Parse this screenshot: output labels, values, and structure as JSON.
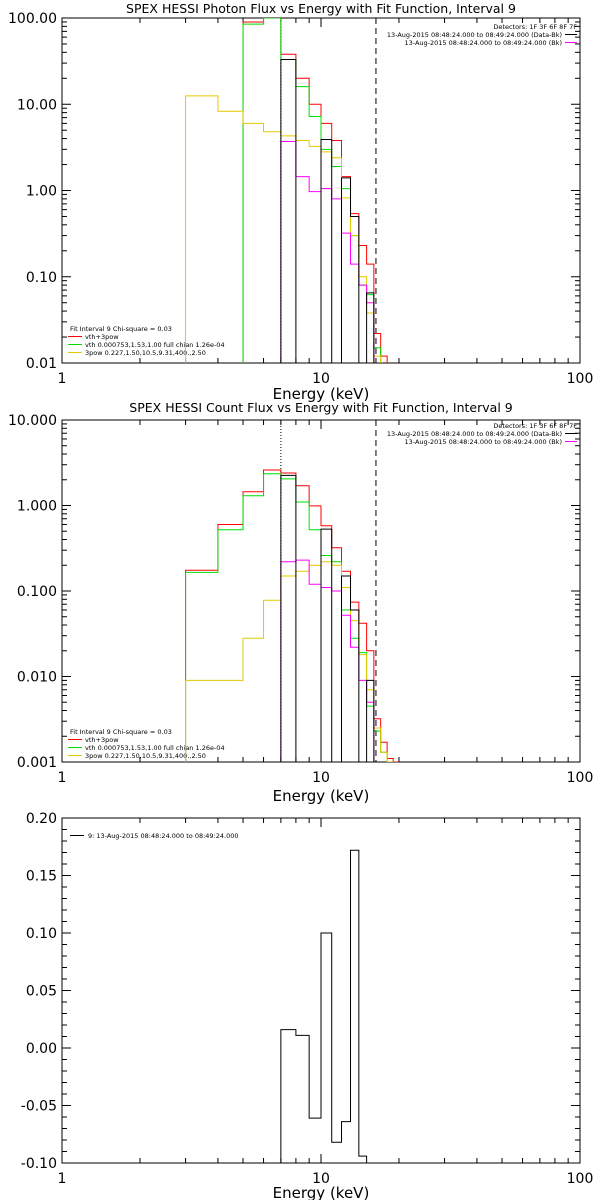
{
  "colors": {
    "total": "#000000",
    "model": "#ff0000",
    "vth": "#00dd00",
    "3pow": "#e6c800",
    "background": "#ff00ff",
    "marker": "#0000ff"
  },
  "chart_data": [
    {
      "type": "line",
      "id": "photon",
      "title": "SPEX HESSI Photon Flux vs Energy with Fit Function, Interval 9",
      "xlabel": "Energy (keV)",
      "ylabel": "",
      "xscale": "log",
      "yscale": "log",
      "xlim": [
        1,
        100
      ],
      "ylim": [
        0.01,
        100
      ],
      "x_tick_labels": [
        "1",
        "10",
        "100"
      ],
      "y_tick_labels": [
        "0.01",
        "0.10",
        "1.00",
        "10.00",
        "100.00"
      ],
      "header_lines": [
        "Detectors: 1F 3F 6F 8F 7F",
        "13-Aug-2015 08:48:24.000 to 08:49:24.000 (Data-Bk)",
        "13-Aug-2015 08:48:24.000 to 08:49:24.000 (Bk)"
      ],
      "legend_lines": [
        "Fit Interval 9   Chi-square = 0.03",
        "vth+3pow",
        "vth 0.000753,1.53,1.00  full chian 1.26e-04",
        "3pow 0.227,1.50,10.5,9.31,400.,2.50"
      ],
      "marker_lines_keV": {
        "dotted_start": 7.0,
        "dashed_end": 16.3
      },
      "bin_edges": [
        3.0,
        4.0,
        5.0,
        6.0,
        7.0,
        8.0,
        9.0,
        10.0,
        11.0,
        12.0,
        13.0,
        14.0,
        15.0,
        16.0,
        17.0,
        18.0
      ],
      "series": [
        {
          "name": "vth+3pow",
          "color_key": "model",
          "values": [
            null,
            null,
            90.0,
            100.0,
            38.0,
            20.0,
            10.0,
            6.0,
            3.8,
            1.45,
            0.54,
            0.23,
            0.14,
            0.022,
            0.012
          ]
        },
        {
          "name": "vth",
          "color_key": "vth",
          "values": [
            null,
            null,
            85.0,
            100.0,
            33.0,
            16.0,
            7.2,
            3.0,
            1.9,
            1.05,
            0.3,
            0.08,
            0.062,
            0.015,
            0.008
          ]
        },
        {
          "name": "3pow",
          "color_key": "3pow",
          "values": [
            12.5,
            8.3,
            6.0,
            4.8,
            4.3,
            3.8,
            3.25,
            2.8,
            2.4,
            0.82,
            0.3,
            0.1,
            0.038,
            0.012,
            0.008
          ]
        },
        {
          "name": "Bk",
          "color_key": "background",
          "values": [
            null,
            null,
            null,
            null,
            3.7,
            1.45,
            0.97,
            1.05,
            0.8,
            0.32,
            0.14,
            0.08,
            0.05,
            null,
            null
          ]
        },
        {
          "name": "Data-Bk",
          "color_key": "total",
          "values": [
            null,
            null,
            null,
            null,
            33.0,
            null,
            null,
            3.9,
            null,
            1.4,
            0.5,
            null,
            0.065,
            null,
            null
          ]
        }
      ]
    },
    {
      "type": "line",
      "id": "count",
      "title": "SPEX HESSI Count Flux vs Energy with Fit Function, Interval 9",
      "xlabel": "Energy (keV)",
      "ylabel": "",
      "xscale": "log",
      "yscale": "log",
      "xlim": [
        1,
        100
      ],
      "ylim": [
        0.001,
        10
      ],
      "x_tick_labels": [
        "1",
        "10",
        "100"
      ],
      "y_tick_labels": [
        "0.001",
        "0.010",
        "0.100",
        "1.000",
        "10.000"
      ],
      "header_lines": [
        "Detectors: 1F 3F 6F 8F 7F",
        "13-Aug-2015 08:48:24.000 to 08:49:24.000 (Data-Bk)",
        "13-Aug-2015 08:48:24.000 to 08:49:24.000 (Bk)"
      ],
      "legend_lines": [
        "Fit Interval 9   Chi-square = 0.03",
        "vth+3pow",
        "vth 0.000753,1.53,1.00  full chian 1.26e-04",
        "3pow 0.227,1.50,10.5,9.31,400.,2.50"
      ],
      "marker_lines_keV": {
        "dotted_start": 7.0,
        "dashed_end": 16.3
      },
      "bin_edges": [
        3.0,
        4.0,
        5.0,
        6.0,
        7.0,
        8.0,
        9.0,
        10.0,
        11.0,
        12.0,
        13.0,
        14.0,
        15.0,
        16.0,
        17.0,
        18.0,
        19.0,
        20.0
      ],
      "series": [
        {
          "name": "vth+3pow",
          "color_key": "model",
          "values": [
            0.175,
            0.6,
            1.45,
            2.6,
            2.4,
            1.7,
            0.99,
            0.58,
            0.32,
            0.17,
            0.074,
            0.042,
            0.02,
            0.0032,
            0.0017,
            0.0011,
            0.001
          ]
        },
        {
          "name": "vth",
          "color_key": "vth",
          "values": [
            0.165,
            0.52,
            1.3,
            2.35,
            2.05,
            1.1,
            0.52,
            0.26,
            0.22,
            0.06,
            0.028,
            0.019,
            0.0045,
            0.0023,
            0.0013,
            0.001,
            null
          ]
        },
        {
          "name": "3pow",
          "color_key": "3pow",
          "values": [
            0.009,
            0.009,
            0.028,
            0.078,
            0.15,
            0.17,
            0.2,
            0.22,
            0.2,
            0.11,
            0.045,
            0.018,
            0.007,
            0.0025,
            0.0013,
            0.001,
            null
          ]
        },
        {
          "name": "Bk",
          "color_key": "background",
          "values": [
            null,
            null,
            null,
            null,
            0.22,
            0.23,
            0.12,
            0.11,
            0.1,
            0.052,
            0.022,
            0.009,
            0.005,
            null,
            null,
            null,
            null
          ]
        },
        {
          "name": "Data-Bk",
          "color_key": "total",
          "values": [
            null,
            null,
            null,
            null,
            2.25,
            null,
            null,
            0.53,
            null,
            0.15,
            0.06,
            null,
            0.009,
            null,
            null,
            null,
            null
          ]
        }
      ]
    },
    {
      "type": "line",
      "id": "residuals",
      "title": "",
      "xlabel": "Energy (keV)",
      "ylabel": "",
      "xscale": "log",
      "yscale": "linear",
      "xlim": [
        1,
        100
      ],
      "ylim": [
        -0.1,
        0.2
      ],
      "x_tick_labels": [
        "1",
        "10",
        "100"
      ],
      "y_tick_labels": [
        "-0.10",
        "-0.05",
        "0.00",
        "0.05",
        "0.10",
        "0.15",
        "0.20"
      ],
      "y_tick_values": [
        -0.1,
        -0.05,
        0.0,
        0.05,
        0.1,
        0.15,
        0.2
      ],
      "legend_lines": [
        "9: 13-Aug-2015 08:48:24.000 to 08:49:24.000"
      ],
      "bin_edges": [
        7.0,
        8.0,
        9.0,
        10.0,
        11.0,
        12.0,
        13.0,
        14.0,
        15.0,
        16.0
      ],
      "series": [
        {
          "name": "9: 13-Aug-2015 08:48:24.000 to 08:49:24.000",
          "color_key": "total",
          "values": [
            0.016,
            0.011,
            -0.061,
            0.1,
            -0.082,
            -0.064,
            0.172,
            -0.094,
            -0.1
          ]
        }
      ]
    }
  ]
}
